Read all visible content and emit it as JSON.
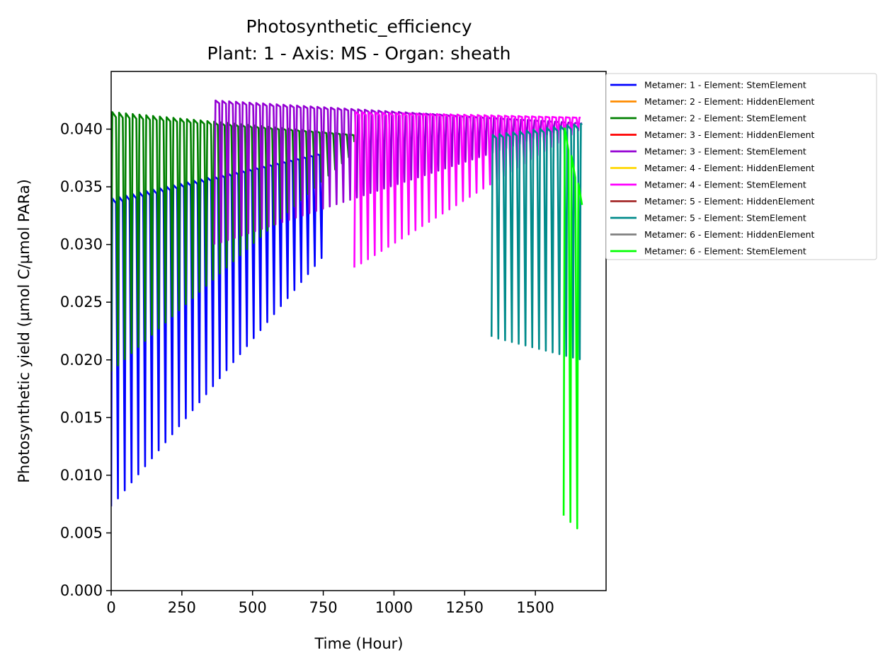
{
  "chart_data": {
    "type": "line",
    "title": "Photosynthetic_efficiency",
    "subtitle": "Plant: 1 - Axis: MS - Organ: sheath",
    "xlabel": "Time (Hour)",
    "ylabel": "Photosynthetic yield (µmol C/µmol PARa)",
    "xlim": [
      0,
      1750
    ],
    "ylim": [
      0,
      0.045
    ],
    "x_ticks": [
      0,
      250,
      500,
      750,
      1000,
      1250,
      1500
    ],
    "y_ticks": [
      0.0,
      0.005,
      0.01,
      0.015,
      0.02,
      0.025,
      0.03,
      0.035,
      0.04
    ],
    "x_tick_labels": [
      "0",
      "250",
      "500",
      "750",
      "1000",
      "1250",
      "1500"
    ],
    "y_tick_labels": [
      "0.000",
      "0.005",
      "0.010",
      "0.015",
      "0.020",
      "0.025",
      "0.030",
      "0.035",
      "0.040"
    ],
    "grid": false,
    "legend_position": "outside-right",
    "legend": [
      {
        "label": "Metamer: 1 - Element: StemElement",
        "color": "#0000ff"
      },
      {
        "label": "Metamer: 2 - Element: HiddenElement",
        "color": "#ff8c00"
      },
      {
        "label": "Metamer: 2 - Element: StemElement",
        "color": "#008000"
      },
      {
        "label": "Metamer: 3 - Element: HiddenElement",
        "color": "#ff0000"
      },
      {
        "label": "Metamer: 3 - Element: StemElement",
        "color": "#9400d3"
      },
      {
        "label": "Metamer: 4 - Element: HiddenElement",
        "color": "#ffd700"
      },
      {
        "label": "Metamer: 4 - Element: StemElement",
        "color": "#ff00ff"
      },
      {
        "label": "Metamer: 5 - Element: HiddenElement",
        "color": "#a52a2a"
      },
      {
        "label": "Metamer: 5 - Element: StemElement",
        "color": "#008b8b"
      },
      {
        "label": "Metamer: 6 - Element: HiddenElement",
        "color": "#808080"
      },
      {
        "label": "Metamer: 6 - Element: StemElement",
        "color": "#00ff00"
      }
    ],
    "series": [
      {
        "name": "Metamer: 1 - Element: StemElement",
        "color": "#0000ff",
        "cycle_hours": 24,
        "start_x": 0,
        "end_x": 750,
        "peak": [
          0.034,
          0.038
        ],
        "trough": [
          0.0073,
          0.029
        ]
      },
      {
        "name": "Metamer: 2 - Element: StemElement",
        "color": "#008000",
        "cycle_hours": 24,
        "start_x": 0,
        "end_x": 860,
        "peak": [
          0.0415,
          0.0395
        ],
        "trough": [
          0.019,
          0.038
        ]
      },
      {
        "name": "Metamer: 3 - Element: StemElement",
        "color": "#9400d3",
        "cycle_hours": 24,
        "start_x": 365,
        "end_x": 1665,
        "peak": [
          0.0425,
          0.0405
        ],
        "trough": [
          0.03,
          0.0405
        ]
      },
      {
        "name": "Metamer: 4 - Element: StemElement",
        "color": "#ff00ff",
        "cycle_hours": 24,
        "start_x": 860,
        "end_x": 1660,
        "peak": [
          0.0415,
          0.041
        ],
        "trough": [
          0.028,
          0.04
        ]
      },
      {
        "name": "Metamer: 5 - Element: StemElement",
        "color": "#008b8b",
        "cycle_hours": 24,
        "start_x": 1345,
        "end_x": 1665,
        "peak": [
          0.0395,
          0.0405
        ],
        "trough": [
          0.022,
          0.02
        ]
      },
      {
        "name": "Metamer: 6 - Element: StemElement",
        "color": "#00ff00",
        "cycle_hours": 24,
        "start_x": 1600,
        "end_x": 1665,
        "peak": [
          0.0405,
          0.034
        ],
        "trough": [
          0.0065,
          0.005
        ]
      }
    ]
  }
}
